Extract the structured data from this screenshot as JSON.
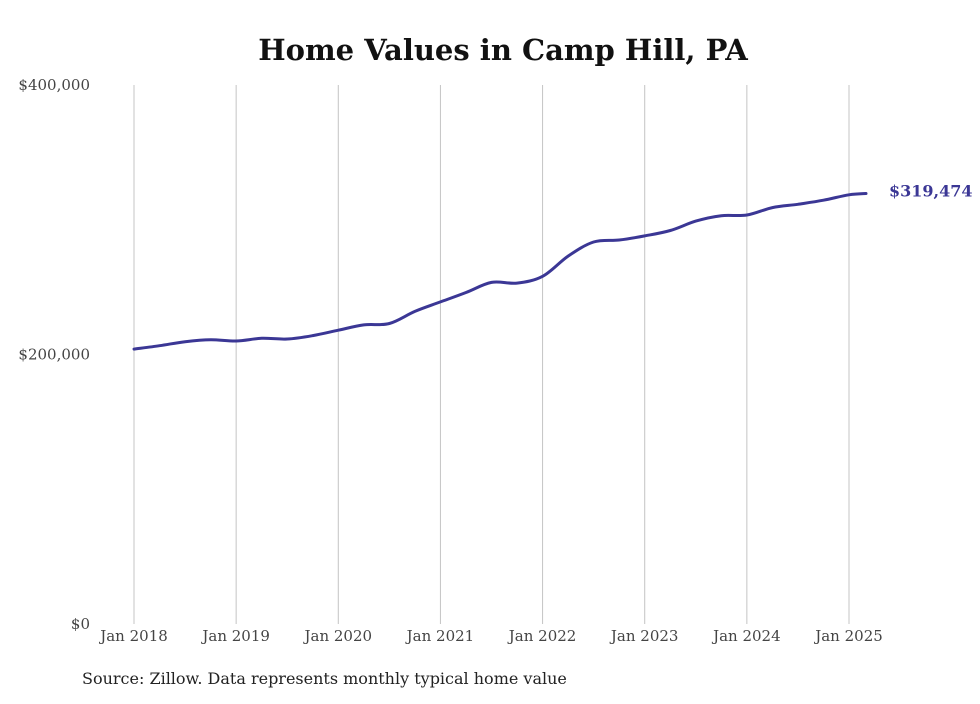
{
  "chart_data": {
    "type": "line",
    "title": "Home Values in Camp Hill, PA",
    "xlabel": "",
    "ylabel": "",
    "ylim": [
      0,
      400000
    ],
    "y_ticks": [
      "$0",
      "$200,000",
      "$400,000"
    ],
    "y_tick_values": [
      0,
      200000,
      400000
    ],
    "x_ticks": [
      "Jan 2018",
      "Jan 2019",
      "Jan 2020",
      "Jan 2021",
      "Jan 2022",
      "Jan 2023",
      "Jan 2024",
      "Jan 2025"
    ],
    "x_tick_dates": [
      "2018-01",
      "2019-01",
      "2020-01",
      "2021-01",
      "2022-01",
      "2023-01",
      "2024-01",
      "2025-01"
    ],
    "grid": "vertical",
    "line_color": "#3b3795",
    "end_label": "$319,474",
    "source": "Source: Zillow. Data represents monthly typical home value",
    "series": [
      {
        "points": [
          [
            "2018-01",
            204000
          ],
          [
            "2018-04",
            206500
          ],
          [
            "2018-07",
            209500
          ],
          [
            "2018-10",
            211000
          ],
          [
            "2019-01",
            210000
          ],
          [
            "2019-04",
            212000
          ],
          [
            "2019-07",
            211500
          ],
          [
            "2019-10",
            214000
          ],
          [
            "2020-01",
            218000
          ],
          [
            "2020-04",
            222000
          ],
          [
            "2020-07",
            223000
          ],
          [
            "2020-10",
            232000
          ],
          [
            "2021-01",
            239000
          ],
          [
            "2021-04",
            246000
          ],
          [
            "2021-07",
            253500
          ],
          [
            "2021-10",
            253000
          ],
          [
            "2022-01",
            258000
          ],
          [
            "2022-04",
            273000
          ],
          [
            "2022-07",
            283500
          ],
          [
            "2022-10",
            285000
          ],
          [
            "2023-01",
            288000
          ],
          [
            "2023-04",
            292000
          ],
          [
            "2023-07",
            299000
          ],
          [
            "2023-10",
            303000
          ],
          [
            "2024-01",
            303500
          ],
          [
            "2024-04",
            309000
          ],
          [
            "2024-07",
            311500
          ],
          [
            "2024-10",
            314500
          ],
          [
            "2025-01",
            318500
          ],
          [
            "2025-03",
            319474
          ]
        ]
      }
    ]
  }
}
